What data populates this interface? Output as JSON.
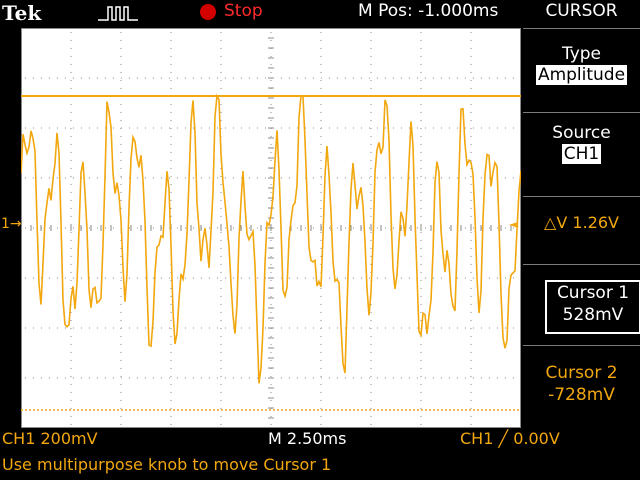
{
  "header": {
    "brand": "Tek",
    "trigger_icon": "trigger-pulse-icon",
    "run_state": "Stop",
    "m_pos": "M Pos: -1.000ms"
  },
  "screen": {
    "channel_marker": "1→",
    "trigger_marker": "↓",
    "channel_ref_marker": "◄",
    "grid_divisions": {
      "horizontal": 10,
      "vertical": 8
    },
    "cursor_colors": {
      "trace": "#f2a70e",
      "cursor": "#f2a70e"
    }
  },
  "readout": {
    "ch1_scale": "CH1  200mV",
    "timebase": "M 2.50ms",
    "trigger": "CH1 ╱ 0.00V",
    "message": "Use multipurpose knob to move Cursor 1"
  },
  "menu": {
    "title": "CURSOR",
    "type_label": "Type",
    "type_value": "Amplitude",
    "source_label": "Source",
    "source_value": "CH1",
    "delta_v": "△V 1.26V",
    "cursor1_label": "Cursor 1",
    "cursor1_value": "528mV",
    "cursor2_label": "Cursor 2",
    "cursor2_value": "-728mV"
  }
}
